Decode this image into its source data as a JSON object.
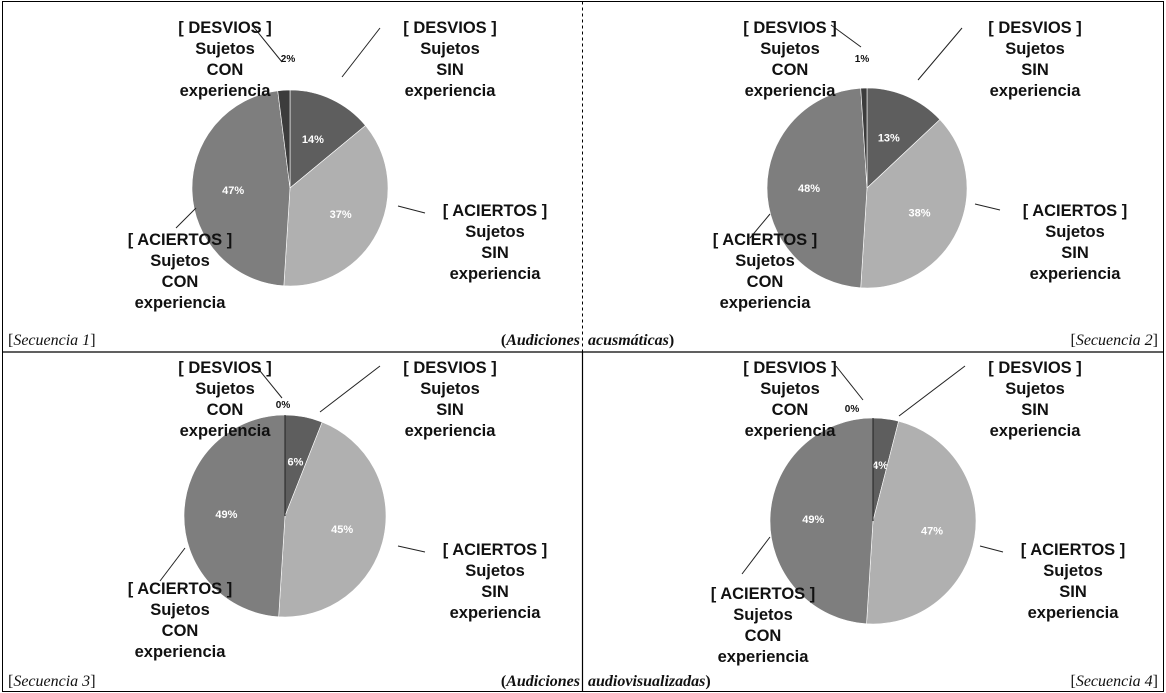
{
  "colors": {
    "desvios_sin": "#5e5e5e",
    "aciertos_sin": "#b0b0b0",
    "aciertos_con": "#7e7e7e",
    "desvios_con": "#3c3c3c"
  },
  "labels": {
    "desvios_sin": [
      "[ DESVIOS ]",
      "Sujetos",
      "SIN",
      "experiencia"
    ],
    "aciertos_sin": [
      "[ ACIERTOS ]",
      "Sujetos",
      "SIN",
      "experiencia"
    ],
    "aciertos_con": [
      "[ ACIERTOS ]",
      "Sujetos",
      "CON",
      "experiencia"
    ],
    "desvios_con": [
      "[ DESVIOS ]",
      "Sujetos",
      "CON",
      "experiencia"
    ]
  },
  "captions": {
    "seq1": "Secuencia 1",
    "seq2": "Secuencia 2",
    "seq3": "Secuencia 3",
    "seq4": "Secuencia 4",
    "row1_left": "Audiciones",
    "row1_right": "acusmáticas",
    "row2_left": "Audiciones",
    "row2_right": "audiovisualizadas"
  },
  "chart_data": [
    {
      "type": "pie",
      "caption": "Secuencia 1",
      "categories": [
        "[ DESVIOS ] Sujetos SIN experiencia",
        "[ ACIERTOS ] Sujetos SIN experiencia",
        "[ ACIERTOS ] Sujetos CON experiencia",
        "[ DESVIOS ] Sujetos CON experiencia"
      ],
      "values": [
        14,
        37,
        47,
        2
      ],
      "value_labels": [
        "14%",
        "37%",
        "47%",
        "2%"
      ]
    },
    {
      "type": "pie",
      "caption": "Secuencia 2",
      "categories": [
        "[ DESVIOS ] Sujetos SIN experiencia",
        "[ ACIERTOS ] Sujetos SIN experiencia",
        "[ ACIERTOS ] Sujetos CON experiencia",
        "[ DESVIOS ] Sujetos CON experiencia"
      ],
      "values": [
        13,
        38,
        48,
        1
      ],
      "value_labels": [
        "13%",
        "38%",
        "48%",
        "1%"
      ]
    },
    {
      "type": "pie",
      "caption": "Secuencia 3",
      "categories": [
        "[ DESVIOS ] Sujetos SIN experiencia",
        "[ ACIERTOS ] Sujetos SIN experiencia",
        "[ ACIERTOS ] Sujetos CON experiencia",
        "[ DESVIOS ] Sujetos CON experiencia"
      ],
      "values": [
        6,
        45,
        49,
        0
      ],
      "value_labels": [
        "6%",
        "45%",
        "49%",
        "0%"
      ]
    },
    {
      "type": "pie",
      "caption": "Secuencia 4",
      "categories": [
        "[ DESVIOS ] Sujetos SIN experiencia",
        "[ ACIERTOS ] Sujetos SIN experiencia",
        "[ ACIERTOS ] Sujetos CON experiencia",
        "[ DESVIOS ] Sujetos CON experiencia"
      ],
      "values": [
        4,
        47,
        49,
        0
      ],
      "value_labels": [
        "4%",
        "47%",
        "49%",
        "0%"
      ]
    }
  ]
}
